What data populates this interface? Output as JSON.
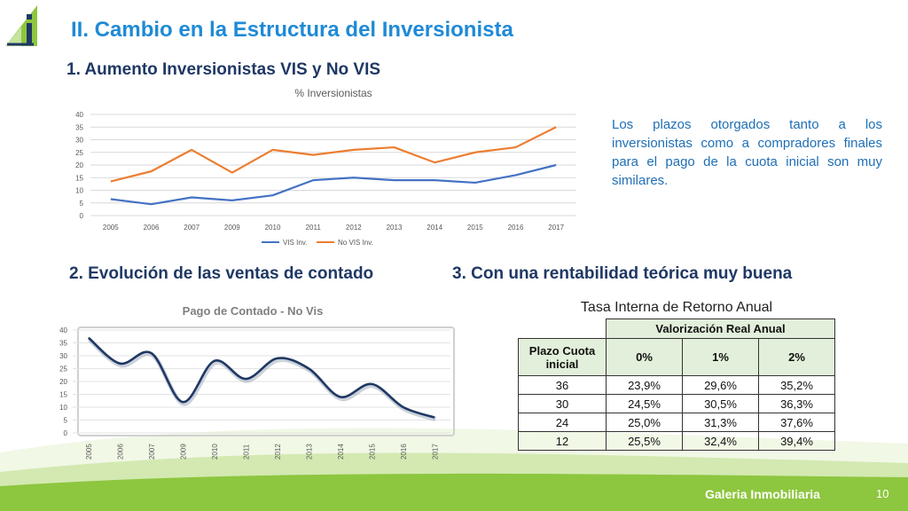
{
  "slide": {
    "title": "II.  Cambio en la Estructura del Inversionista",
    "section1": "1.  Aumento Inversionistas VIS y No VIS",
    "section2": "2.  Evolución de las ventas de contado",
    "section3": "3.  Con una rentabilidad teórica muy buena",
    "note": "Los plazos otorgados tanto a los inversionistas como a compradores finales para el pago de la cuota inicial son muy similares.",
    "footer": "Galeria Inmobiliaria",
    "page_number": "10",
    "accent_color": "#1f8ad6",
    "footer_color": "#8dc63f"
  },
  "chart_data": [
    {
      "type": "line",
      "title": "%  Inversionistas",
      "categories": [
        "2005",
        "2006",
        "2007",
        "2009",
        "2010",
        "2011",
        "2012",
        "2013",
        "2014",
        "2015",
        "2016",
        "2017"
      ],
      "series": [
        {
          "name": "VIS Inv.",
          "color": "#4472c4",
          "values": [
            6.5,
            4.5,
            7.2,
            6,
            8,
            14,
            15,
            14,
            14,
            13,
            16,
            20
          ]
        },
        {
          "name": "No VIS Inv.",
          "color": "#ed7d31",
          "values": [
            13.5,
            17.5,
            26,
            17,
            26,
            24,
            26,
            27,
            21,
            25,
            27,
            35
          ]
        }
      ],
      "ylim": [
        0,
        40
      ],
      "yticks": [
        0,
        5,
        10,
        15,
        20,
        25,
        30,
        35,
        40
      ],
      "grid": true,
      "legend": "bottom"
    },
    {
      "type": "line",
      "title": "Pago de Contado - No Vis",
      "categories": [
        "2005",
        "2006",
        "2007",
        "2009",
        "2010",
        "2011",
        "2012",
        "2013",
        "2014",
        "2015",
        "2016",
        "2017"
      ],
      "series": [
        {
          "color": "#1f3864",
          "values": [
            37,
            27,
            31,
            12,
            28,
            21,
            29,
            25,
            14,
            19,
            10,
            6
          ]
        }
      ],
      "ylim": [
        0,
        40
      ],
      "yticks": [
        0,
        5,
        10,
        15,
        20,
        25,
        30,
        35,
        40
      ],
      "grid": true,
      "smooth": true
    }
  ],
  "table": {
    "title": "Tasa Interna de Retorno Anual",
    "group_header": "Valorización Real Anual",
    "row_header": "Plazo Cuota inicial",
    "columns": [
      "0%",
      "1%",
      "2%"
    ],
    "rows": [
      {
        "plazo": "36",
        "values": [
          "23,9%",
          "29,6%",
          "35,2%"
        ]
      },
      {
        "plazo": "30",
        "values": [
          "24,5%",
          "30,5%",
          "36,3%"
        ]
      },
      {
        "plazo": "24",
        "values": [
          "25,0%",
          "31,3%",
          "37,6%"
        ]
      },
      {
        "plazo": "12",
        "values": [
          "25,5%",
          "32,4%",
          "39,4%"
        ]
      }
    ]
  }
}
